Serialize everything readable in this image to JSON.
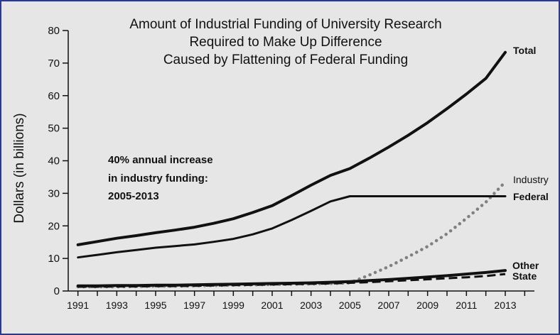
{
  "chart_data": {
    "type": "line",
    "title_lines": [
      "Amount of Industrial Funding of University Research",
      "Required to Make Up Difference",
      "Caused by Flattening of Federal Funding"
    ],
    "ylabel": "Dollars (in billions)",
    "xlabel": "",
    "xlim": [
      1990.5,
      2014.5
    ],
    "ylim": [
      0,
      80
    ],
    "yticks": [
      "0",
      "10",
      "20",
      "30",
      "40",
      "50",
      "60",
      "70",
      "80"
    ],
    "xticks": [
      "1991",
      "1993",
      "1995",
      "1997",
      "1999",
      "2001",
      "2003",
      "2005",
      "2007",
      "2009",
      "2011",
      "2013"
    ],
    "annotation_lines": [
      "40% annual increase",
      "in industry funding:",
      "2005-2013"
    ],
    "legend": "inline-right",
    "grid": false,
    "colors": {
      "dark": "#111111",
      "industry": "#808080",
      "background": "#e6e6e6",
      "border": "#2b3a8c"
    },
    "x": [
      1991,
      1992,
      1993,
      1994,
      1995,
      1996,
      1997,
      1998,
      1999,
      2000,
      2001,
      2002,
      2003,
      2004,
      2005,
      2006,
      2007,
      2008,
      2009,
      2010,
      2011,
      2012,
      2013
    ],
    "series": [
      {
        "name": "Total",
        "style": "solid-thick",
        "values": [
          14.2,
          15.2,
          16.2,
          17.0,
          17.9,
          18.7,
          19.6,
          20.8,
          22.2,
          24.1,
          26.2,
          29.3,
          32.5,
          35.5,
          37.6,
          40.8,
          44.2,
          47.8,
          51.7,
          56.0,
          60.5,
          65.3,
          73.3
        ]
      },
      {
        "name": "Federal",
        "style": "solid",
        "values": [
          10.3,
          11.1,
          11.9,
          12.6,
          13.3,
          13.8,
          14.3,
          15.1,
          16.0,
          17.4,
          19.2,
          21.8,
          24.6,
          27.5,
          29.1,
          29.1,
          29.1,
          29.1,
          29.1,
          29.1,
          29.1,
          29.1,
          29.1
        ]
      },
      {
        "name": "Industry",
        "style": "dotted",
        "values": [
          1.3,
          1.3,
          1.3,
          1.4,
          1.5,
          1.5,
          1.6,
          1.7,
          1.8,
          1.9,
          2.0,
          2.1,
          2.2,
          2.3,
          2.5,
          4.9,
          7.5,
          10.5,
          13.7,
          17.6,
          22.3,
          27.3,
          33.5
        ]
      },
      {
        "name": "Other",
        "style": "solid-thick",
        "values": [
          1.6,
          1.6,
          1.7,
          1.7,
          1.8,
          1.8,
          1.9,
          2.0,
          2.1,
          2.2,
          2.3,
          2.4,
          2.5,
          2.7,
          2.9,
          3.2,
          3.5,
          3.9,
          4.3,
          4.7,
          5.2,
          5.7,
          6.3
        ]
      },
      {
        "name": "State",
        "style": "dashed",
        "values": [
          1.3,
          1.3,
          1.4,
          1.4,
          1.5,
          1.5,
          1.6,
          1.7,
          1.8,
          1.9,
          2.0,
          2.1,
          2.2,
          2.3,
          2.5,
          2.7,
          3.0,
          3.3,
          3.6,
          3.9,
          4.2,
          4.6,
          5.2
        ]
      }
    ]
  }
}
